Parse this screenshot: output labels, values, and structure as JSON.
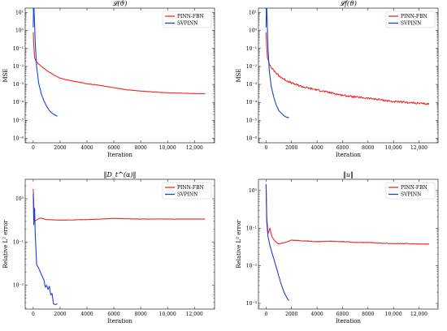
{
  "colors": {
    "pinn_fbn": "#ee2b2b",
    "svpinn": "#1f3fd6",
    "axis": "#000000"
  },
  "chart_data": [
    {
      "type": "line",
      "title": "𝓛(ϑ)",
      "xlabel": "Iteration",
      "ylabel": "MSE",
      "yscale": "log",
      "xlim": [
        -600,
        13500
      ],
      "ylog_range": [
        -6.25,
        1.25
      ],
      "xticks": [
        0,
        2000,
        4000,
        6000,
        8000,
        10000,
        12000
      ],
      "xtick_labels": [
        "0",
        "2000",
        "4000",
        "6000",
        "8000",
        "10,000",
        "12,000"
      ],
      "ytick_exps": [
        1,
        0,
        -1,
        -2,
        -3,
        -4,
        -5,
        -6
      ],
      "ytick_labels": [
        "10¹",
        "10⁰",
        "10⁻¹",
        "10⁻²",
        "10⁻³",
        "10⁻⁴",
        "10⁻⁵",
        "10⁻⁶"
      ],
      "legend": {
        "position": "top-right",
        "entries": [
          "PINN-FBN",
          "SVPINN"
        ]
      },
      "series": [
        {
          "name": "PINN-FBN",
          "color": "#ee2b2b",
          "noise": 0.012,
          "points": [
            [
              0,
              0.8
            ],
            [
              30,
              0.2
            ],
            [
              100,
              0.03
            ],
            [
              200,
              0.02
            ],
            [
              400,
              0.014
            ],
            [
              700,
              0.009
            ],
            [
              1000,
              0.006
            ],
            [
              1500,
              0.0035
            ],
            [
              2000,
              0.0022
            ],
            [
              3000,
              0.0015
            ],
            [
              4000,
              0.0011
            ],
            [
              5000,
              0.00088
            ],
            [
              6000,
              0.00065
            ],
            [
              7000,
              0.0005
            ],
            [
              8000,
              0.00043
            ],
            [
              9000,
              0.00038
            ],
            [
              10000,
              0.00034
            ],
            [
              11000,
              0.00033
            ],
            [
              12000,
              0.00031
            ],
            [
              12800,
              0.0003
            ]
          ]
        },
        {
          "name": "SVPINN",
          "color": "#1f3fd6",
          "noise": 0,
          "points": [
            [
              0,
              1.5
            ],
            [
              30,
              60
            ],
            [
              80,
              5
            ],
            [
              150,
              0.2
            ],
            [
              250,
              0.01
            ],
            [
              400,
              0.0012
            ],
            [
              600,
              0.0003
            ],
            [
              800,
              0.00012
            ],
            [
              1000,
              6e-05
            ],
            [
              1200,
              3.5e-05
            ],
            [
              1400,
              2.5e-05
            ],
            [
              1600,
              2e-05
            ],
            [
              1800,
              1.7e-05
            ]
          ]
        }
      ]
    },
    {
      "type": "line",
      "title": "𝓛f(ϑ)",
      "xlabel": "Iteration",
      "ylabel": "MSE",
      "yscale": "log",
      "xlim": [
        -600,
        13500
      ],
      "ylog_range": [
        -6.25,
        1.25
      ],
      "xticks": [
        0,
        2000,
        4000,
        6000,
        8000,
        10000,
        12000
      ],
      "xtick_labels": [
        "0",
        "2000",
        "4000",
        "6000",
        "8000",
        "10,000",
        "12,000"
      ],
      "ytick_exps": [
        1,
        0,
        -1,
        -2,
        -3,
        -4,
        -5,
        -6
      ],
      "ytick_labels": [
        "10¹",
        "10⁰",
        "10⁻¹",
        "10⁻²",
        "10⁻³",
        "10⁻⁴",
        "10⁻⁵",
        "10⁻⁶"
      ],
      "legend": {
        "position": "top-right",
        "entries": [
          "PINN-FBN",
          "SVPINN"
        ]
      },
      "series": [
        {
          "name": "PINN-FBN",
          "color": "#ee2b2b",
          "noise": 0.05,
          "points": [
            [
              0,
              0.8
            ],
            [
              30,
              0.2
            ],
            [
              100,
              0.03
            ],
            [
              300,
              0.012
            ],
            [
              600,
              0.006
            ],
            [
              1000,
              0.003
            ],
            [
              1500,
              0.0018
            ],
            [
              2000,
              0.0012
            ],
            [
              2500,
              0.0009
            ],
            [
              3000,
              0.0007
            ],
            [
              4000,
              0.0005
            ],
            [
              5000,
              0.00035
            ],
            [
              6000,
              0.00025
            ],
            [
              7000,
              0.0002
            ],
            [
              8000,
              0.00017
            ],
            [
              9000,
              0.00014
            ],
            [
              10000,
              0.00011
            ],
            [
              11000,
              0.0001
            ],
            [
              12000,
              8.8e-05
            ],
            [
              12800,
              8e-05
            ]
          ]
        },
        {
          "name": "SVPINN",
          "color": "#1f3fd6",
          "noise": 0,
          "points": [
            [
              0,
              1.5
            ],
            [
              30,
              50
            ],
            [
              80,
              5
            ],
            [
              150,
              0.1
            ],
            [
              250,
              0.006
            ],
            [
              400,
              0.0008
            ],
            [
              600,
              0.0002
            ],
            [
              800,
              7e-05
            ],
            [
              1000,
              3.5e-05
            ],
            [
              1200,
              2.5e-05
            ],
            [
              1400,
              1.8e-05
            ],
            [
              1600,
              1.5e-05
            ],
            [
              1800,
              1.4e-05
            ]
          ]
        }
      ]
    },
    {
      "type": "line",
      "title": "‖D_t^(α)‖",
      "xlabel": "Iteration",
      "ylabel": "Relative L² error",
      "yscale": "log",
      "xlim": [
        -600,
        13500
      ],
      "ylog_range": [
        -2.55,
        0.45
      ],
      "xticks": [
        0,
        2000,
        4000,
        6000,
        8000,
        10000,
        12000
      ],
      "xtick_labels": [
        "0",
        "2000",
        "4000",
        "6000",
        "8000",
        "10,000",
        "12,000"
      ],
      "ytick_exps": [
        0,
        -1,
        -2
      ],
      "ytick_labels": [
        "10⁰",
        "10⁻¹",
        "10⁻²"
      ],
      "legend": {
        "position": "top-right",
        "entries": [
          "PINN-FBN",
          "SVPINN"
        ]
      },
      "series": [
        {
          "name": "PINN-FBN",
          "color": "#ee2b2b",
          "noise": 0.004,
          "points": [
            [
              0,
              1.7
            ],
            [
              40,
              0.7
            ],
            [
              120,
              0.31
            ],
            [
              300,
              0.33
            ],
            [
              500,
              0.36
            ],
            [
              1000,
              0.33
            ],
            [
              2000,
              0.32
            ],
            [
              4000,
              0.33
            ],
            [
              6000,
              0.35
            ],
            [
              8000,
              0.34
            ],
            [
              10000,
              0.34
            ],
            [
              12000,
              0.34
            ],
            [
              12800,
              0.34
            ]
          ]
        },
        {
          "name": "SVPINN",
          "color": "#1f3fd6",
          "noise": 0,
          "points": [
            [
              0,
              1.3
            ],
            [
              40,
              0.25
            ],
            [
              100,
              0.6
            ],
            [
              150,
              0.15
            ],
            [
              250,
              0.03
            ],
            [
              400,
              0.025
            ],
            [
              600,
              0.018
            ],
            [
              800,
              0.013
            ],
            [
              900,
              0.009
            ],
            [
              1000,
              0.01
            ],
            [
              1100,
              0.008
            ],
            [
              1200,
              0.0095
            ],
            [
              1300,
              0.006
            ],
            [
              1400,
              0.0065
            ],
            [
              1500,
              0.0038
            ],
            [
              1600,
              0.0036
            ],
            [
              1800,
              0.0037
            ]
          ]
        }
      ]
    },
    {
      "type": "line",
      "title": "‖u‖",
      "xlabel": "Iteration",
      "ylabel": "Relative L² error",
      "yscale": "log",
      "xlim": [
        -600,
        13500
      ],
      "ylog_range": [
        -3.15,
        0.3
      ],
      "xticks": [
        0,
        2000,
        4000,
        6000,
        8000,
        10000,
        12000
      ],
      "xtick_labels": [
        "0",
        "2000",
        "4000",
        "6000",
        "8000",
        "10,000",
        "12,000"
      ],
      "ytick_exps": [
        0,
        -1,
        -2,
        -3
      ],
      "ytick_labels": [
        "10⁰",
        "10⁻¹",
        "10⁻²",
        "10⁻³"
      ],
      "legend": {
        "position": "top-right",
        "entries": [
          "PINN-FBN",
          "SVPINN"
        ]
      },
      "series": [
        {
          "name": "PINN-FBN",
          "color": "#ee2b2b",
          "noise": 0.008,
          "points": [
            [
              0,
              1.5
            ],
            [
              50,
              0.2
            ],
            [
              150,
              0.07
            ],
            [
              300,
              0.1
            ],
            [
              450,
              0.06
            ],
            [
              700,
              0.045
            ],
            [
              1000,
              0.038
            ],
            [
              1500,
              0.042
            ],
            [
              2000,
              0.048
            ],
            [
              3000,
              0.046
            ],
            [
              4000,
              0.044
            ],
            [
              5000,
              0.045
            ],
            [
              6000,
              0.044
            ],
            [
              7000,
              0.042
            ],
            [
              8000,
              0.042
            ],
            [
              9000,
              0.04
            ],
            [
              10000,
              0.039
            ],
            [
              11000,
              0.039
            ],
            [
              12000,
              0.038
            ],
            [
              12800,
              0.038
            ]
          ]
        },
        {
          "name": "SVPINN",
          "color": "#1f3fd6",
          "noise": 0,
          "points": [
            [
              0,
              1.4
            ],
            [
              50,
              0.15
            ],
            [
              150,
              0.06
            ],
            [
              300,
              0.035
            ],
            [
              500,
              0.02
            ],
            [
              700,
              0.012
            ],
            [
              900,
              0.007
            ],
            [
              1100,
              0.004
            ],
            [
              1300,
              0.0025
            ],
            [
              1500,
              0.0017
            ],
            [
              1700,
              0.0013
            ],
            [
              1800,
              0.0012
            ]
          ]
        }
      ]
    }
  ]
}
